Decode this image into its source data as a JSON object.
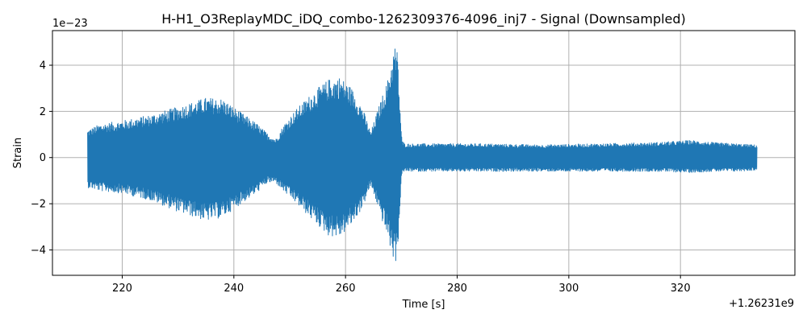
{
  "chart_data": {
    "type": "line",
    "title": "H-H1_O3ReplayMDC_iDQ_combo-1262309376-4096_inj7 - Signal (Downsampled)",
    "xlabel": "Time [s]",
    "ylabel": "Strain",
    "x_offset_label": "+1.26231e9",
    "y_scale_label": "1e−23",
    "xlim": [
      207.5,
      340.5
    ],
    "ylim": [
      -5.1,
      5.5
    ],
    "x_ticks": [
      220,
      240,
      260,
      280,
      300,
      320
    ],
    "x_tick_labels": [
      "220",
      "240",
      "260",
      "280",
      "300",
      "320"
    ],
    "y_ticks": [
      -4,
      -2,
      0,
      2,
      4
    ],
    "y_tick_labels": [
      "−4",
      "−2",
      "0",
      "2",
      "4"
    ],
    "grid": true,
    "series": [
      {
        "color": "#1f77b4",
        "envelope": {
          "t": [
            213.8,
            216,
            220,
            225,
            230,
            235,
            238,
            241,
            244,
            246,
            247.5,
            249,
            251,
            254,
            257,
            259,
            261,
            263,
            264.5,
            265.5,
            266.5,
            267.5,
            268.2,
            268.8,
            269.3,
            269.7,
            270.1,
            270.6,
            275,
            285,
            295,
            305,
            315,
            322,
            326,
            330,
            333.7
          ],
          "upper": [
            1.2,
            1.45,
            1.6,
            1.85,
            2.2,
            2.6,
            2.55,
            2.0,
            1.5,
            1.05,
            0.8,
            1.45,
            2.05,
            2.8,
            3.4,
            3.5,
            3.05,
            2.2,
            1.1,
            1.85,
            2.6,
            3.3,
            4.1,
            4.9,
            4.6,
            2.5,
            0.75,
            0.6,
            0.6,
            0.6,
            0.55,
            0.6,
            0.65,
            0.75,
            0.65,
            0.6,
            0.55
          ],
          "lower": [
            -1.3,
            -1.45,
            -1.55,
            -1.85,
            -2.35,
            -2.75,
            -2.6,
            -2.05,
            -1.55,
            -1.1,
            -1.1,
            -1.5,
            -1.95,
            -2.7,
            -3.4,
            -3.45,
            -2.95,
            -2.2,
            -1.25,
            -1.9,
            -2.7,
            -3.4,
            -4.1,
            -4.6,
            -4.35,
            -2.4,
            -0.7,
            -0.6,
            -0.6,
            -0.6,
            -0.6,
            -0.6,
            -0.6,
            -0.65,
            -0.6,
            -0.6,
            -0.55
          ]
        }
      }
    ]
  }
}
